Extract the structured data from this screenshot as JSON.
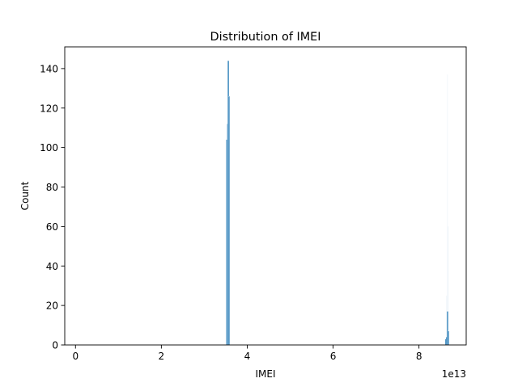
{
  "chart_data": {
    "type": "bar",
    "title": "Distribution of IMEI",
    "xlabel": "IMEI",
    "ylabel": "Count",
    "x_offset_label": "1e13",
    "xlim": [
      -0.25,
      9.1
    ],
    "ylim": [
      0,
      151
    ],
    "x_ticks": [
      {
        "value": 0,
        "label": "0"
      },
      {
        "value": 2,
        "label": "2"
      },
      {
        "value": 4,
        "label": "4"
      },
      {
        "value": 6,
        "label": "6"
      },
      {
        "value": 8,
        "label": "8"
      }
    ],
    "y_ticks": [
      {
        "value": 0,
        "label": "0"
      },
      {
        "value": 20,
        "label": "20"
      },
      {
        "value": 40,
        "label": "40"
      },
      {
        "value": 60,
        "label": "60"
      },
      {
        "value": 80,
        "label": "80"
      },
      {
        "value": 100,
        "label": "100"
      },
      {
        "value": 120,
        "label": "120"
      },
      {
        "value": 140,
        "label": "140"
      }
    ],
    "bin_width": 0.02,
    "bars": [
      {
        "x": 3.52,
        "count": 104
      },
      {
        "x": 3.54,
        "count": 112
      },
      {
        "x": 3.555,
        "count": 144
      },
      {
        "x": 3.57,
        "count": 126
      },
      {
        "x": 8.62,
        "count": 3
      },
      {
        "x": 8.64,
        "count": 4
      },
      {
        "x": 8.66,
        "count": 17
      },
      {
        "x": 8.68,
        "count": 7
      }
    ],
    "faint_bars": [
      {
        "x": 8.64,
        "count": 25
      },
      {
        "x": 8.66,
        "count": 137
      },
      {
        "x": 8.68,
        "count": 60
      }
    ],
    "grid": false,
    "bar_color": "#1f77b4",
    "bar_edge_color": "#ffffff"
  }
}
